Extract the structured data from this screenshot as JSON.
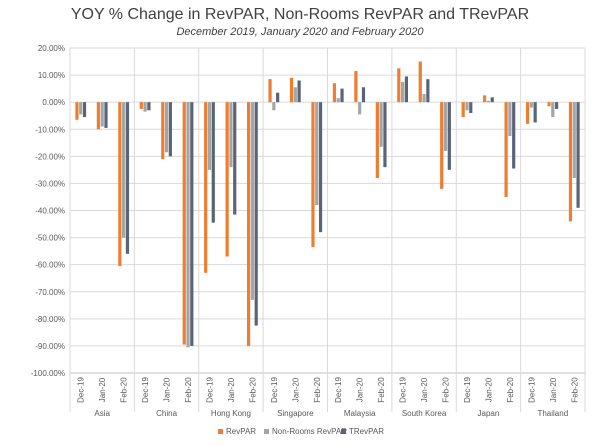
{
  "chart_data": {
    "type": "bar",
    "title": "YOY % Change in RevPAR, Non-Rooms RevPAR and TRevPAR",
    "subtitle": "December 2019, January 2020 and February 2020",
    "xlabel": "",
    "ylabel": "",
    "ylim": [
      -100,
      20
    ],
    "ytick_step": 10,
    "ytick_labels": [
      "20.00%",
      "10.00%",
      "0.00%",
      "-10.00%",
      "-20.00%",
      "-30.00%",
      "-40.00%",
      "-50.00%",
      "-60.00%",
      "-70.00%",
      "-80.00%",
      "-90.00%",
      "-100.00%"
    ],
    "grid": true,
    "legend_position": "bottom",
    "periods": [
      "Dec-19",
      "Jan-20",
      "Feb-20"
    ],
    "groups": [
      "Asia",
      "China",
      "Hong Kong",
      "Singapore",
      "Malaysia",
      "South Korea",
      "Japan",
      "Thailand"
    ],
    "series": [
      {
        "name": "RevPAR",
        "color": "#ED7D31",
        "values": [
          [
            -6.5,
            -10.0,
            -60.5
          ],
          [
            -2.5,
            -21.0,
            -89.5
          ],
          [
            -63.0,
            -57.0,
            -90.0
          ],
          [
            8.5,
            9.0,
            -53.5
          ],
          [
            7.0,
            11.5,
            -28.0
          ],
          [
            12.5,
            15.0,
            -32.0
          ],
          [
            -5.5,
            2.5,
            -35.0
          ],
          [
            -8.0,
            -1.5,
            -44.0
          ]
        ]
      },
      {
        "name": "Non-Rooms RevPAR",
        "color": "#A5A5A5",
        "values": [
          [
            -4.5,
            -9.0,
            -50.0
          ],
          [
            -3.5,
            -18.5,
            -90.5
          ],
          [
            -25.0,
            -24.0,
            -73.0
          ],
          [
            -3.0,
            5.5,
            -38.0
          ],
          [
            1.5,
            -4.5,
            -16.5
          ],
          [
            7.5,
            3.0,
            -18.0
          ],
          [
            -3.0,
            0.5,
            -12.5
          ],
          [
            -2.0,
            -5.5,
            -28.0
          ]
        ]
      },
      {
        "name": "TRevPAR",
        "color": "#5A6478",
        "values": [
          [
            -5.5,
            -9.5,
            -56.0
          ],
          [
            -3.0,
            -20.0,
            -90.0
          ],
          [
            -44.5,
            -41.5,
            -82.5
          ],
          [
            3.5,
            8.0,
            -48.0
          ],
          [
            5.0,
            5.5,
            -24.0
          ],
          [
            9.5,
            8.5,
            -25.0
          ],
          [
            -4.0,
            1.8,
            -24.5
          ],
          [
            -7.5,
            -2.5,
            -39.0
          ]
        ]
      }
    ]
  }
}
